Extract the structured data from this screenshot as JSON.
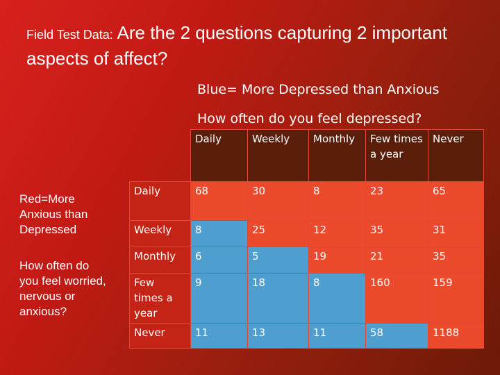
{
  "title": {
    "prefix": "Field Test Data:",
    "main": " Are the 2 questions capturing 2 important aspects of affect?"
  },
  "legend_blue": "Blue= More Depressed than Anxious",
  "column_question": "How often do you feel depressed?",
  "legend_red": "Red=More Anxious than Depressed",
  "row_question": "How often do you feel worried, nervous or anxious?",
  "columns": [
    "Daily",
    "Weekly",
    "Monthly",
    "Few times a year",
    "Never"
  ],
  "rows": [
    {
      "label": "Daily",
      "cells": [
        "68",
        "30",
        "8",
        "23",
        "65"
      ]
    },
    {
      "label": "Weekly",
      "cells": [
        "8",
        "25",
        "12",
        "35",
        "31"
      ]
    },
    {
      "label": "Monthly",
      "cells": [
        "6",
        "5",
        "19",
        "21",
        "35"
      ]
    },
    {
      "label": "Few times a year",
      "cells": [
        "9",
        "18",
        "8",
        "160",
        "159"
      ]
    },
    {
      "label": "Never",
      "cells": [
        "11",
        "13",
        "11",
        "58",
        "1188"
      ]
    }
  ],
  "colors": {
    "red": "#ec4a2d",
    "blue": "#4e9ed0"
  }
}
